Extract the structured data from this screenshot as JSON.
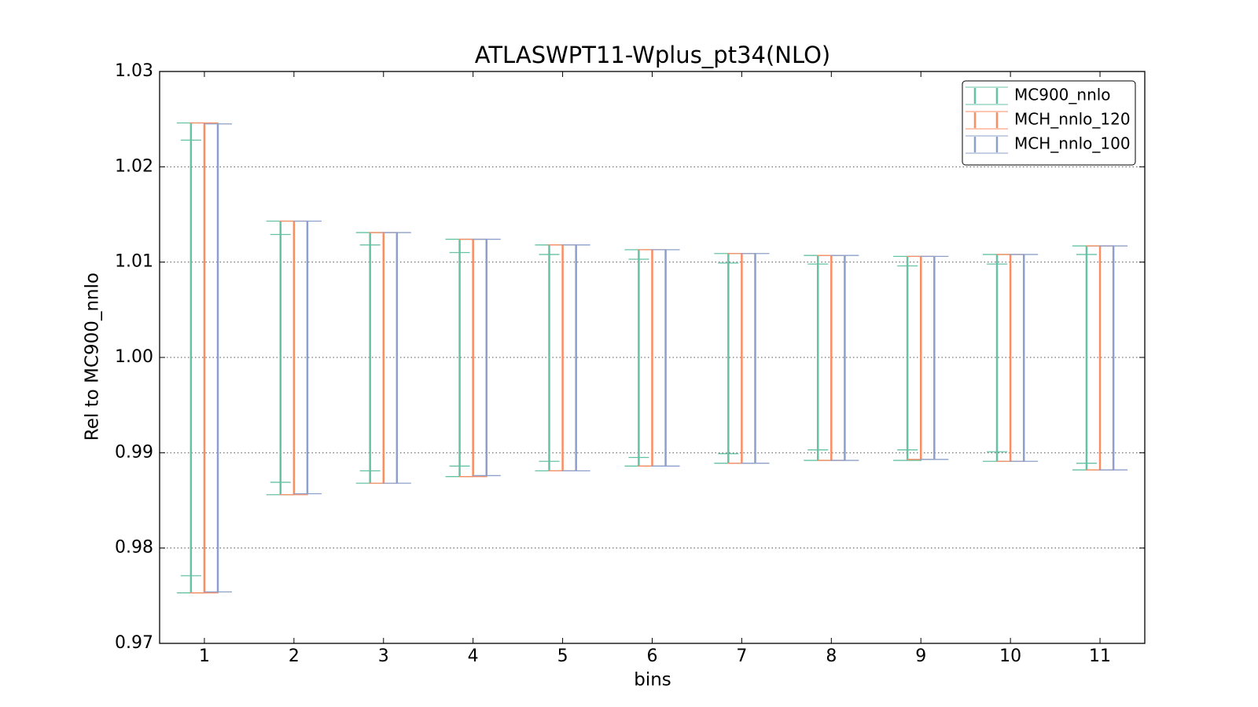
{
  "chart_data": {
    "type": "errorbar",
    "title": "ATLASWPT11-Wplus_pt34(NLO)",
    "x_label": "bins",
    "y_label": "Rel to MC900_nnlo",
    "x": [
      1,
      2,
      3,
      4,
      5,
      6,
      7,
      8,
      9,
      10,
      11
    ],
    "xlim": [
      0.5,
      11.5
    ],
    "xticks": [
      1,
      2,
      3,
      4,
      5,
      6,
      7,
      8,
      9,
      10,
      11
    ],
    "ylim": [
      0.97,
      1.03
    ],
    "yticks": [
      0.97,
      0.98,
      0.99,
      {
        "value": 1,
        "label": "1.00"
      },
      1.01,
      1.02,
      1.03
    ],
    "grid": "y",
    "legend": "upper right",
    "series": [
      {
        "name": "MC900_nnlo",
        "color": "#66c2a5",
        "high": [
          1.0246,
          1.0143,
          1.0131,
          1.0124,
          1.0118,
          1.0113,
          1.0109,
          1.0107,
          1.0106,
          1.0108,
          1.0117
        ],
        "low": [
          0.9753,
          0.9856,
          0.9868,
          0.9875,
          0.9881,
          0.9886,
          0.9889,
          0.9892,
          0.9892,
          0.9891,
          0.9882
        ],
        "inner_high": [
          1.0228,
          1.0129,
          1.0118,
          1.011,
          1.0108,
          1.0103,
          1.0099,
          1.0098,
          1.0096,
          1.0098,
          1.0108
        ],
        "inner_low": [
          0.9771,
          0.9869,
          0.9881,
          0.9886,
          0.9891,
          0.9895,
          0.9899,
          0.9903,
          0.9903,
          0.9901,
          0.9889
        ]
      },
      {
        "name": "MCH_nnlo_120",
        "color": "#fc8d62",
        "high": [
          1.0246,
          1.0143,
          1.0131,
          1.0124,
          1.0118,
          1.0113,
          1.0109,
          1.0107,
          1.0106,
          1.0108,
          1.0117
        ],
        "low": [
          0.9753,
          0.9856,
          0.9868,
          0.9875,
          0.9881,
          0.9886,
          0.9889,
          0.9892,
          0.9893,
          0.9891,
          0.9882
        ]
      },
      {
        "name": "MCH_nnlo_100",
        "color": "#8da0cb",
        "high": [
          1.0245,
          1.0143,
          1.0131,
          1.0124,
          1.0118,
          1.0113,
          1.0109,
          1.0107,
          1.0106,
          1.0108,
          1.0117
        ],
        "low": [
          0.9754,
          0.9857,
          0.9868,
          0.9876,
          0.9881,
          0.9886,
          0.9889,
          0.9892,
          0.9893,
          0.9891,
          0.9882
        ]
      }
    ]
  }
}
